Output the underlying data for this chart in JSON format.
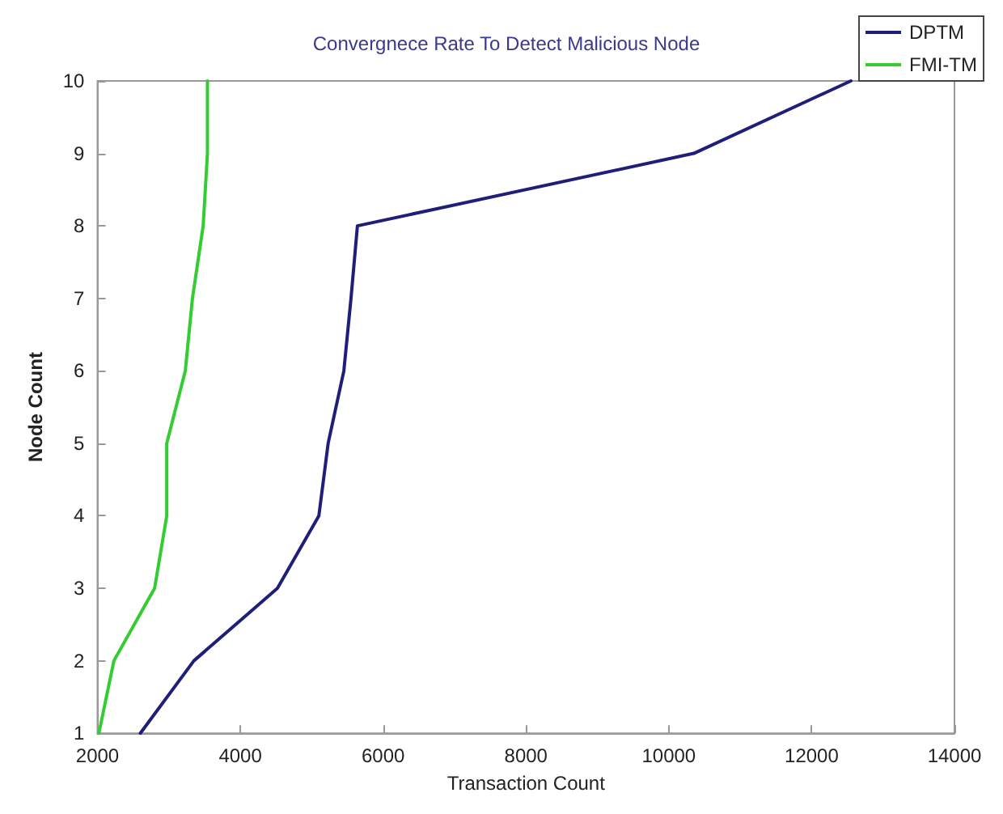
{
  "chart_data": {
    "type": "line",
    "title": "Convergnece Rate To Detect Malicious Node",
    "xlabel": "Transaction Count",
    "ylabel": "Node Count",
    "xlim": [
      2000,
      14000
    ],
    "xticks": [
      2000,
      4000,
      6000,
      8000,
      10000,
      12000,
      14000
    ],
    "ylim": [
      1,
      10
    ],
    "yticks": [
      1,
      2,
      3,
      4,
      5,
      6,
      7,
      8,
      9,
      10
    ],
    "series": [
      {
        "name": "DPTM",
        "color": "#1f1f7a",
        "x": [
          2600,
          3350,
          4520,
          5100,
          5230,
          5450,
          5550,
          5640,
          10350,
          12550
        ],
        "values": [
          1,
          2,
          3,
          4,
          5,
          6,
          7,
          8,
          9,
          10
        ]
      },
      {
        "name": "FMI-TM",
        "color": "#33cc33",
        "x": [
          2020,
          2230,
          2800,
          2970,
          2970,
          3230,
          3330,
          3480,
          3540,
          3540
        ],
        "values": [
          1,
          2,
          3,
          4,
          5,
          6,
          7,
          8,
          9,
          10
        ]
      }
    ],
    "legend": "top right",
    "grid": false,
    "marker": "none",
    "line_style": "solid"
  }
}
